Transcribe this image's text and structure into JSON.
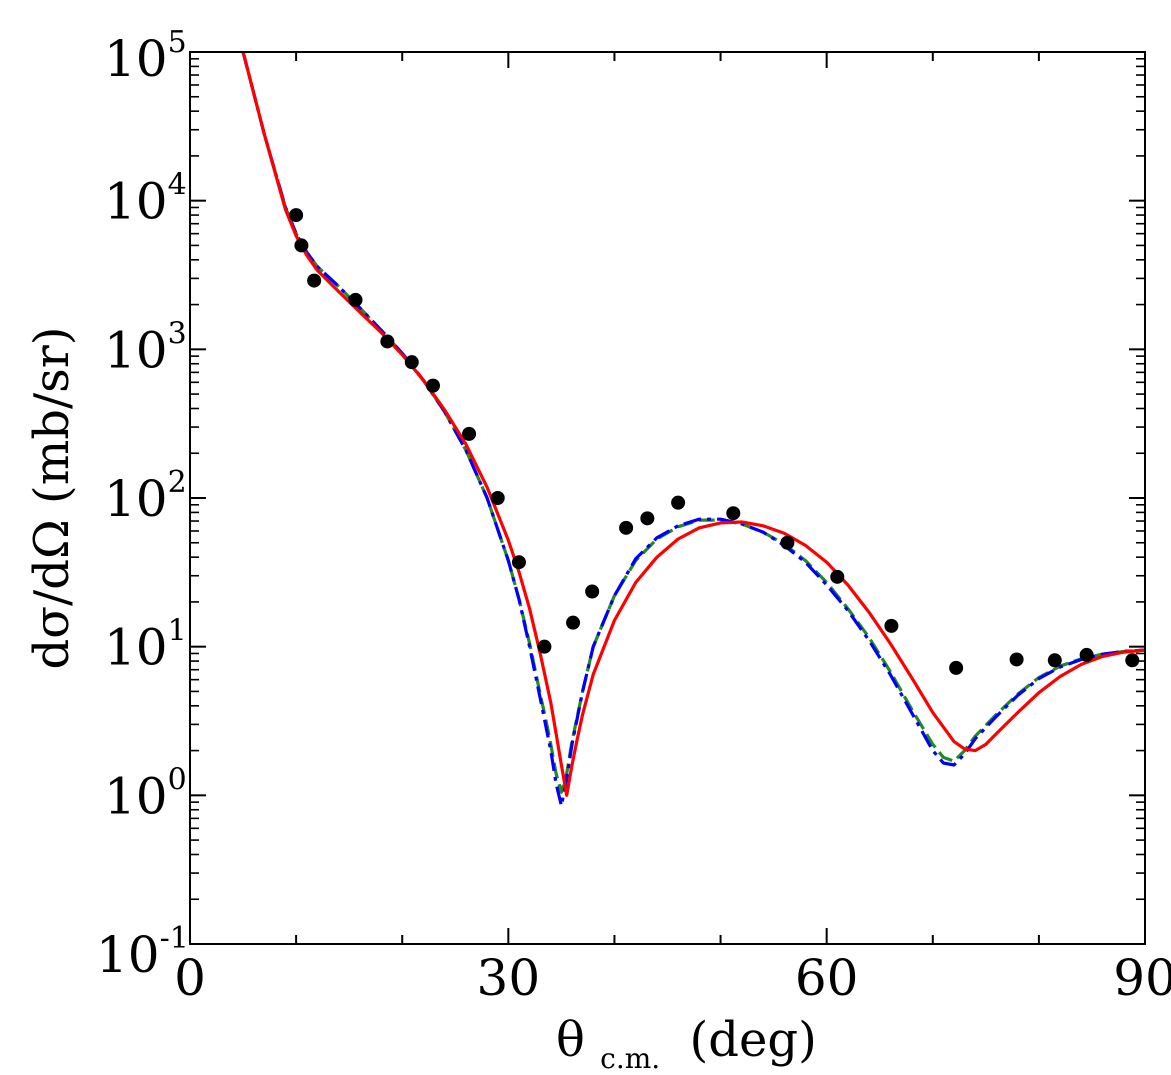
{
  "chart_data": {
    "type": "scatter",
    "title": "",
    "xlabel": {
      "main": "θ",
      "sub": "c.m.",
      "rest": "(deg)"
    },
    "ylabel": "dσ/dΩ (mb/sr)",
    "xlim": [
      0,
      90
    ],
    "ylim": [
      0.1,
      100000
    ],
    "yscale": "log",
    "x_ticks": [
      "0",
      "30",
      "60",
      "90"
    ],
    "x_tick_values": [
      0,
      30,
      60,
      90
    ],
    "y_ticks": [
      {
        "base": "10",
        "exp": "-1",
        "value": 0.1
      },
      {
        "base": "10",
        "exp": "0",
        "value": 1
      },
      {
        "base": "10",
        "exp": "1",
        "value": 10
      },
      {
        "base": "10",
        "exp": "2",
        "value": 100
      },
      {
        "base": "10",
        "exp": "3",
        "value": 1000
      },
      {
        "base": "10",
        "exp": "4",
        "value": 10000
      },
      {
        "base": "10",
        "exp": "5",
        "value": 100000
      }
    ],
    "grid": false,
    "legend": "none",
    "data_points": {
      "color": "#000000",
      "x": [
        10,
        10.5,
        11.7,
        15.6,
        18.6,
        20.9,
        22.9,
        26.3,
        29.0,
        31.0,
        33.4,
        36.1,
        37.9,
        41.1,
        43.1,
        46.0,
        51.2,
        56.3,
        61.0,
        66.1,
        72.2,
        77.9,
        81.5,
        84.5,
        88.8
      ],
      "y": [
        8000,
        5000,
        2900,
        2150,
        1130,
        820,
        570,
        270,
        100,
        37,
        10,
        14.5,
        23.5,
        63,
        73,
        93,
        79,
        50,
        29.5,
        13.8,
        7.2,
        8.2,
        8.1,
        8.8,
        8.1
      ]
    },
    "series": [
      {
        "color": "#228b22",
        "dash": "dashed",
        "x": [
          5,
          7,
          9,
          10,
          11,
          12,
          14,
          16,
          18,
          20,
          22,
          24,
          26,
          28,
          30,
          31,
          32,
          33,
          33.5,
          34,
          34.5,
          35,
          35.5,
          36,
          37,
          38,
          40,
          42,
          44,
          46,
          48,
          50,
          52,
          54,
          56,
          58,
          60,
          62,
          64,
          66,
          68,
          70,
          71,
          72,
          73,
          74,
          76,
          78,
          80,
          82,
          84,
          86,
          88,
          90
        ],
        "y": [
          100000,
          28000,
          9000,
          6000,
          4500,
          3600,
          2650,
          1900,
          1350,
          940,
          620,
          380,
          210,
          100,
          38,
          21,
          10.5,
          4.8,
          3.3,
          2.2,
          1.4,
          1.05,
          1.4,
          2.3,
          5,
          10,
          22,
          38,
          53,
          64,
          71,
          71,
          67,
          59,
          49,
          38,
          27,
          18,
          11.5,
          6.8,
          3.8,
          2.2,
          1.8,
          1.7,
          2.0,
          2.5,
          3.5,
          4.8,
          6.2,
          7.4,
          8.3,
          8.9,
          9.3,
          9.5
        ]
      },
      {
        "color": "#0000ff",
        "dash": "dashdot",
        "x": [
          5,
          7,
          9,
          10,
          11,
          12,
          14,
          16,
          18,
          20,
          22,
          24,
          26,
          28,
          30,
          31,
          32,
          33,
          33.5,
          34,
          34.5,
          35,
          35.5,
          36,
          37,
          38,
          40,
          42,
          44,
          46,
          48,
          50,
          52,
          54,
          56,
          58,
          60,
          62,
          64,
          66,
          68,
          70,
          71,
          72,
          73,
          74,
          76,
          78,
          80,
          82,
          84,
          86,
          88,
          90
        ],
        "y": [
          100000,
          28000,
          9000,
          6000,
          4500,
          3600,
          2650,
          1900,
          1350,
          940,
          620,
          380,
          210,
          100,
          38,
          21,
          10,
          4.5,
          3.0,
          2.0,
          1.2,
          0.85,
          1.3,
          2.2,
          5,
          10,
          22,
          39,
          54,
          65,
          72,
          72,
          67,
          59,
          48,
          37,
          26,
          17.5,
          11,
          6.5,
          3.6,
          2.0,
          1.65,
          1.6,
          1.9,
          2.4,
          3.4,
          4.7,
          6.1,
          7.3,
          8.2,
          8.9,
          9.3,
          9.5
        ]
      },
      {
        "color": "#ff0000",
        "dash": "solid",
        "x": [
          5,
          7,
          9,
          10,
          11,
          12,
          14,
          16,
          18,
          20,
          22,
          24,
          26,
          28,
          30,
          31,
          32,
          33,
          34,
          34.5,
          35,
          35.5,
          36,
          36.5,
          37,
          38,
          40,
          42,
          44,
          46,
          48,
          50,
          52,
          54,
          56,
          58,
          60,
          62,
          64,
          66,
          68,
          70,
          72,
          73,
          74,
          75,
          76,
          78,
          80,
          82,
          84,
          86,
          88,
          90
        ],
        "y": [
          100000,
          28000,
          8700,
          5800,
          4300,
          3400,
          2450,
          1780,
          1300,
          920,
          620,
          390,
          230,
          118,
          52,
          32,
          18,
          9,
          4.2,
          2.6,
          1.6,
          1.0,
          1.6,
          2.4,
          3.5,
          6.5,
          15,
          27,
          40,
          53,
          63,
          68,
          69,
          65,
          58,
          48,
          37,
          26,
          17,
          10.5,
          6.2,
          3.6,
          2.3,
          2.05,
          2.0,
          2.2,
          2.6,
          3.6,
          4.9,
          6.3,
          7.6,
          8.6,
          9.2,
          9.5
        ]
      }
    ]
  }
}
